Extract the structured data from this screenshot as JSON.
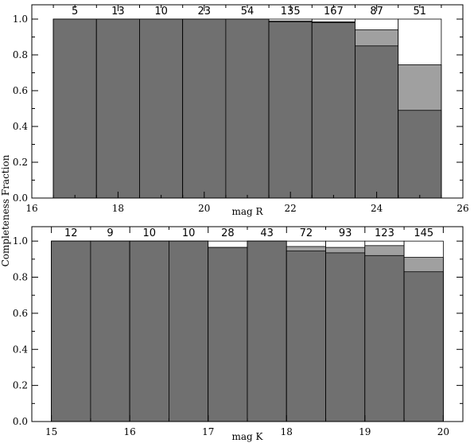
{
  "figure": {
    "shared_ylabel": "Completeness Fraction"
  },
  "chart_data": [
    {
      "type": "bar",
      "xlabel": "mag R",
      "ylabel": "",
      "xlim": [
        16,
        26
      ],
      "ylim": [
        0,
        1.08
      ],
      "xticks": [
        16,
        18,
        20,
        22,
        24,
        26
      ],
      "yticks": [
        "0.0",
        "0.2",
        "0.4",
        "0.6",
        "0.8",
        "1.0"
      ],
      "colors": {
        "outer": "#ffffff",
        "middle": "#a0a0a0",
        "inner": "#707070"
      },
      "bins": [
        {
          "x0": 16.5,
          "x1": 17.5,
          "count": "5",
          "outer": 1.0,
          "middle": 1.0,
          "inner": 1.0
        },
        {
          "x0": 17.5,
          "x1": 18.5,
          "count": "13",
          "outer": 1.0,
          "middle": 1.0,
          "inner": 1.0
        },
        {
          "x0": 18.5,
          "x1": 19.5,
          "count": "10",
          "outer": 1.0,
          "middle": 1.0,
          "inner": 1.0
        },
        {
          "x0": 19.5,
          "x1": 20.5,
          "count": "23",
          "outer": 1.0,
          "middle": 1.0,
          "inner": 1.0
        },
        {
          "x0": 20.5,
          "x1": 21.5,
          "count": "54",
          "outer": 1.0,
          "middle": 1.0,
          "inner": 1.0
        },
        {
          "x0": 21.5,
          "x1": 22.5,
          "count": "135",
          "outer": 1.0,
          "middle": 0.99,
          "inner": 0.985
        },
        {
          "x0": 22.5,
          "x1": 23.5,
          "count": "167",
          "outer": 1.0,
          "middle": 0.985,
          "inner": 0.98
        },
        {
          "x0": 23.5,
          "x1": 24.5,
          "count": "87",
          "outer": 1.0,
          "middle": 0.94,
          "inner": 0.85
        },
        {
          "x0": 24.5,
          "x1": 25.5,
          "count": "51",
          "outer": 1.0,
          "middle": 0.745,
          "inner": 0.49
        }
      ]
    },
    {
      "type": "bar",
      "xlabel": "mag K",
      "ylabel": "",
      "xlim": [
        14.75,
        20.25
      ],
      "ylim": [
        0,
        1.08
      ],
      "xticks": [
        15,
        16,
        17,
        18,
        19,
        20
      ],
      "yticks": [
        "0.0",
        "0.2",
        "0.4",
        "0.6",
        "0.8",
        "1.0"
      ],
      "colors": {
        "outer": "#ffffff",
        "middle": "#a0a0a0",
        "inner": "#707070"
      },
      "bins": [
        {
          "x0": 15.0,
          "x1": 15.5,
          "count": "12",
          "outer": 1.0,
          "middle": 1.0,
          "inner": 1.0
        },
        {
          "x0": 15.5,
          "x1": 16.0,
          "count": "9",
          "outer": 1.0,
          "middle": 1.0,
          "inner": 1.0
        },
        {
          "x0": 16.0,
          "x1": 16.5,
          "count": "10",
          "outer": 1.0,
          "middle": 1.0,
          "inner": 1.0
        },
        {
          "x0": 16.5,
          "x1": 17.0,
          "count": "10",
          "outer": 1.0,
          "middle": 1.0,
          "inner": 1.0
        },
        {
          "x0": 17.0,
          "x1": 17.5,
          "count": "28",
          "outer": 1.0,
          "middle": 0.965,
          "inner": 0.965
        },
        {
          "x0": 17.5,
          "x1": 18.0,
          "count": "43",
          "outer": 1.0,
          "middle": 1.0,
          "inner": 1.0
        },
        {
          "x0": 18.0,
          "x1": 18.5,
          "count": "72",
          "outer": 1.0,
          "middle": 0.97,
          "inner": 0.945
        },
        {
          "x0": 18.5,
          "x1": 19.0,
          "count": "93",
          "outer": 1.0,
          "middle": 0.965,
          "inner": 0.935
        },
        {
          "x0": 19.0,
          "x1": 19.5,
          "count": "123",
          "outer": 1.0,
          "middle": 0.975,
          "inner": 0.92
        },
        {
          "x0": 19.5,
          "x1": 20.0,
          "count": "145",
          "outer": 1.0,
          "middle": 0.91,
          "inner": 0.83
        }
      ]
    }
  ]
}
